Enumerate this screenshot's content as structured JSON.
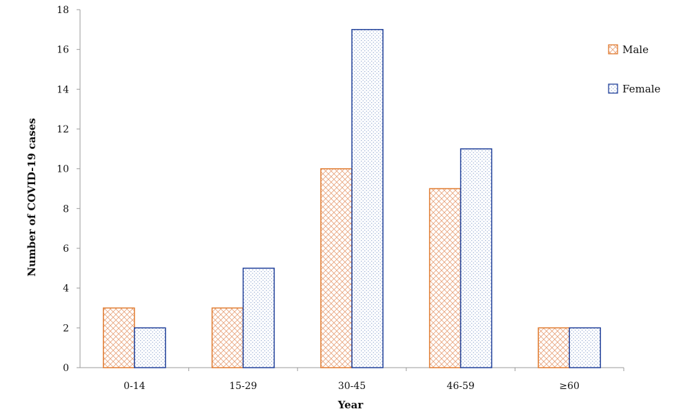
{
  "chart_data": {
    "type": "bar",
    "categories": [
      "0-14",
      "15-29",
      "30-45",
      "46-59",
      "≥60"
    ],
    "series": [
      {
        "name": "Male",
        "values": [
          3,
          3,
          10,
          9,
          2
        ],
        "color": "#e07a2e",
        "pattern": "crosshatch"
      },
      {
        "name": "Female",
        "values": [
          2,
          5,
          17,
          11,
          2
        ],
        "color": "#1f3f99",
        "pattern": "dots"
      }
    ],
    "title": "",
    "xlabel": "Year",
    "ylabel": "Number of COVID-19 cases",
    "ylim": [
      0,
      18
    ],
    "yticks": [
      0,
      2,
      4,
      6,
      8,
      10,
      12,
      14,
      16,
      18
    ],
    "grid": false,
    "legend_position": "top-right"
  }
}
